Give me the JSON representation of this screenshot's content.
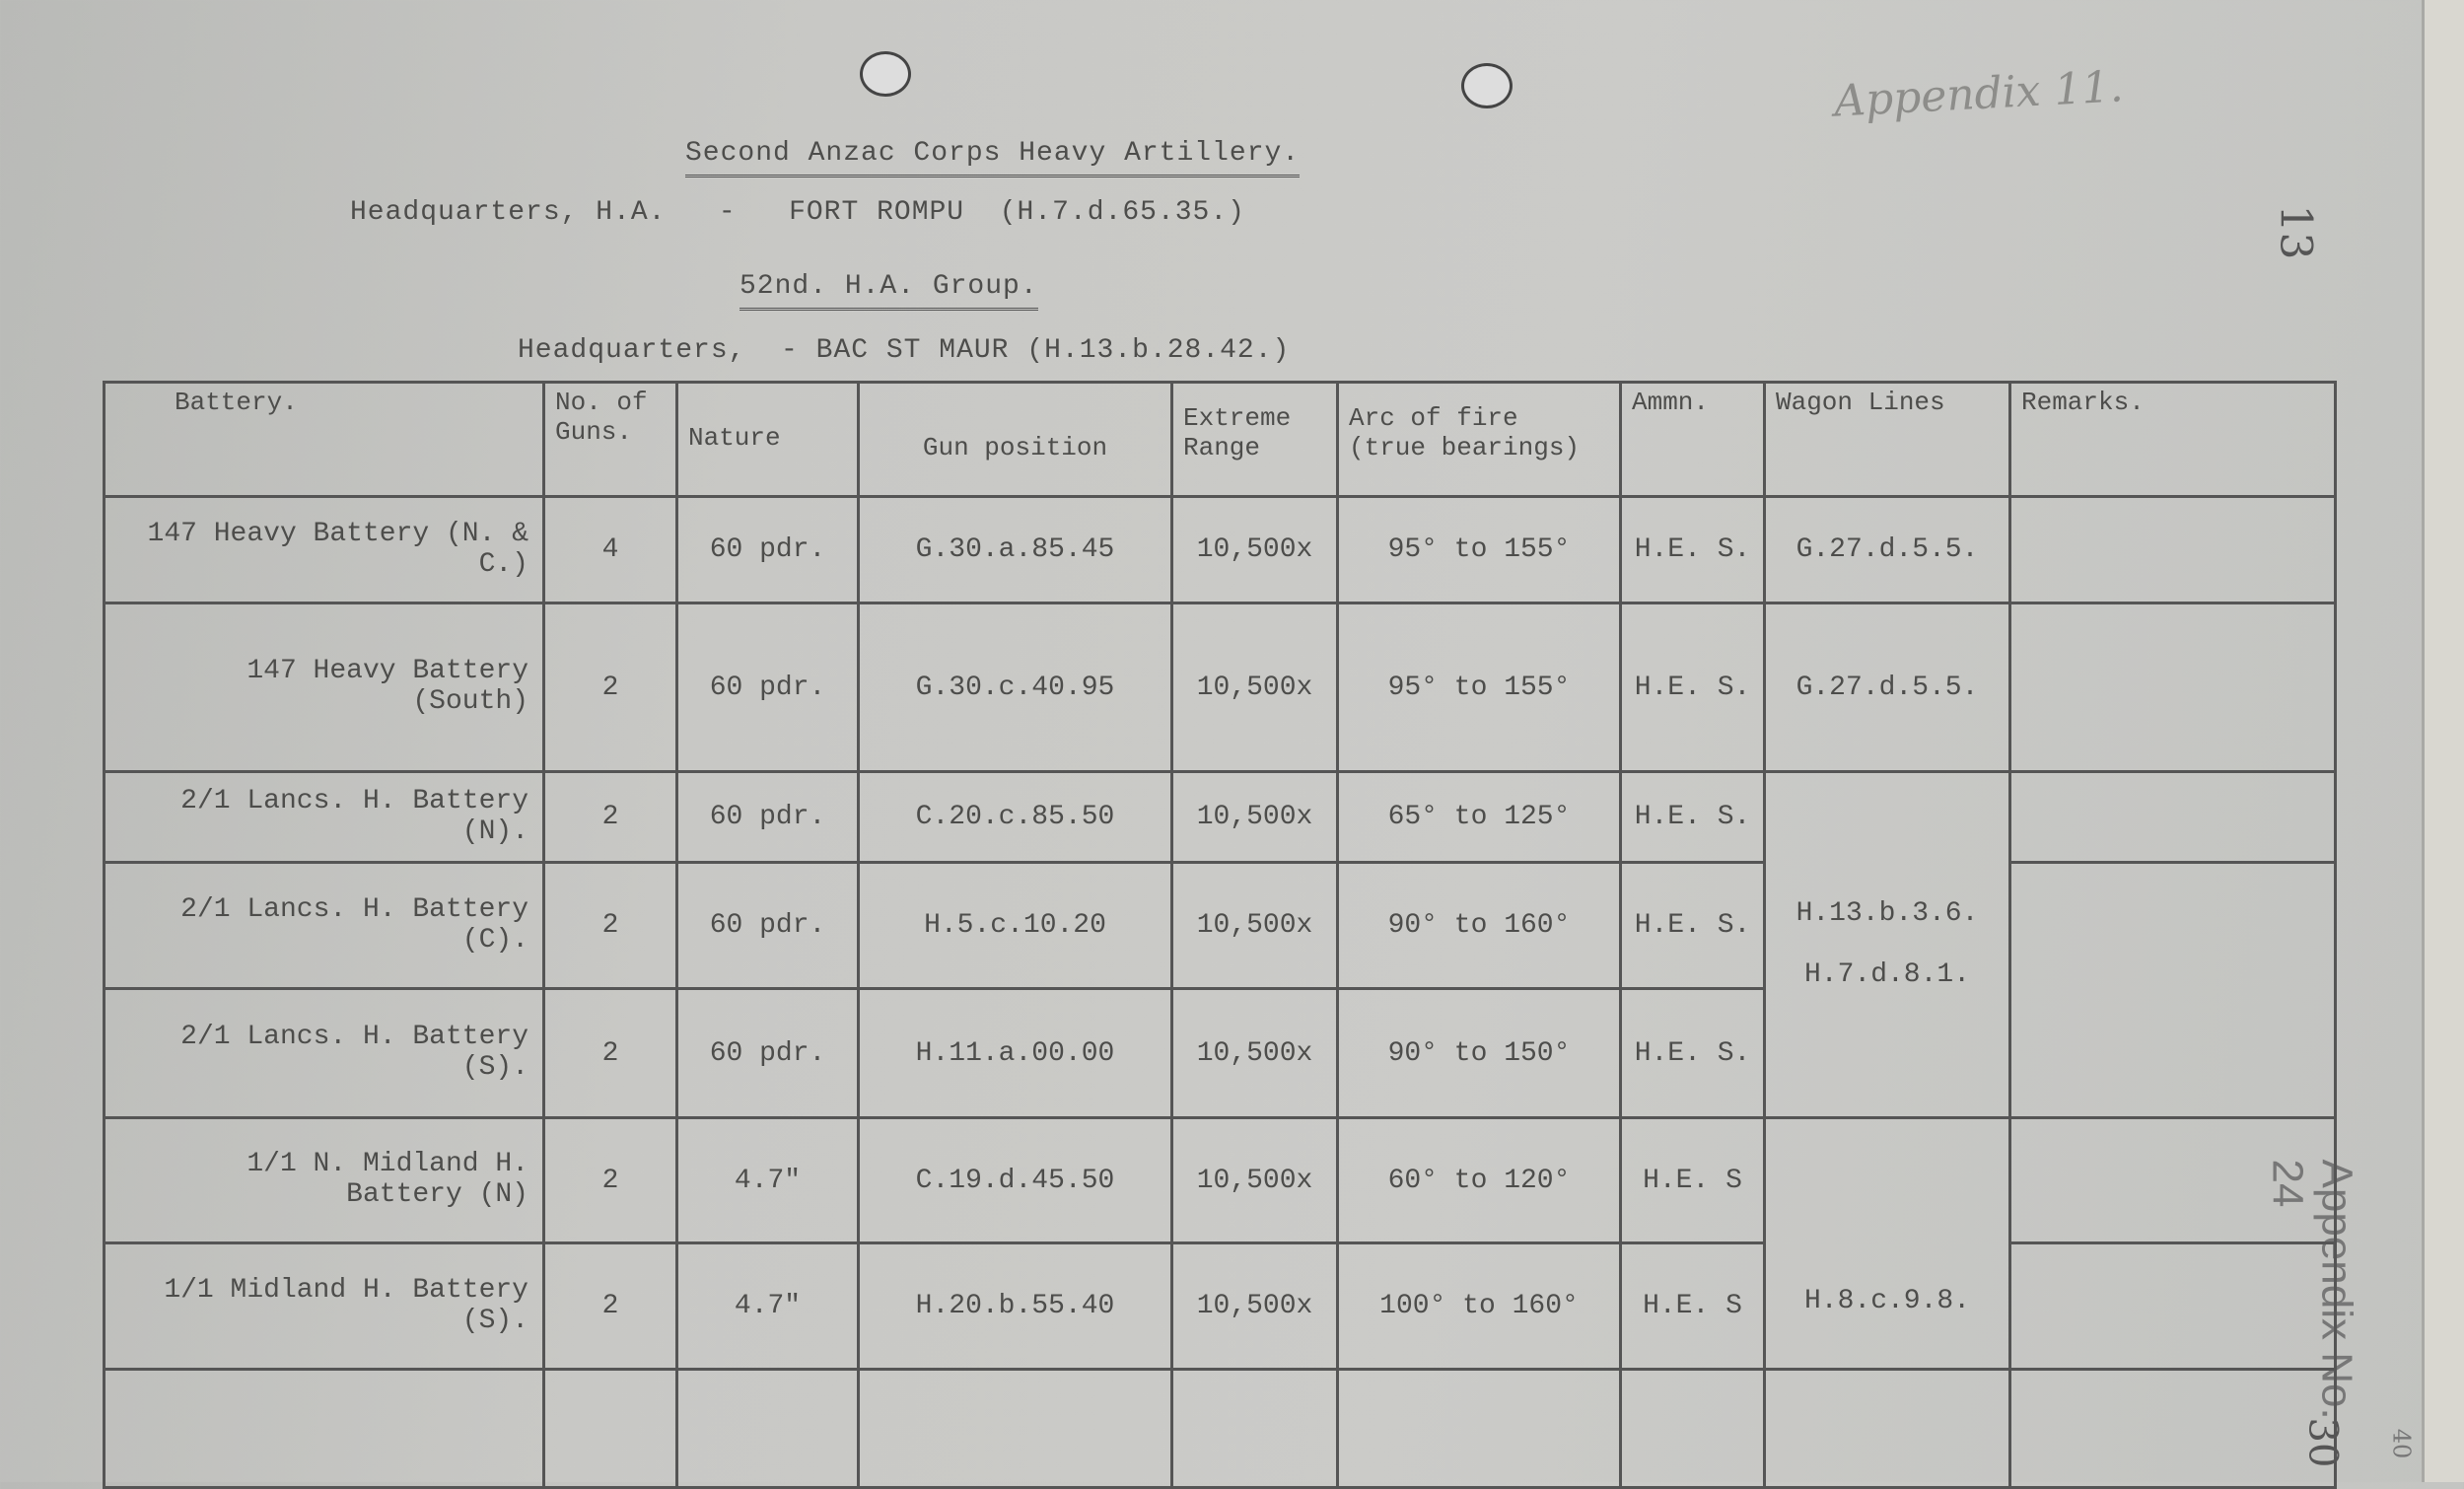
{
  "header": {
    "title": "Second Anzac Corps Heavy Artillery.",
    "hq_line": "Headquarters, H.A.   -   FORT ROMPU  (H.7.d.65.35.)",
    "group": "52nd. H.A. Group.",
    "group_hq_line": "Headquarters,  - BAC ST MAUR (H.13.b.28.42.)"
  },
  "annotations": {
    "appendix_top": "Appendix 11.",
    "page_number": "13",
    "appendix_side": "Appendix No. 24",
    "side_number": "30",
    "corner_number": "40"
  },
  "table": {
    "columns": [
      "Battery.",
      "No. of Guns.",
      "Nature",
      "Gun position",
      "Extreme Range",
      "Arc of fire (true bearings)",
      "Ammn.",
      "Wagon Lines",
      "Remarks."
    ],
    "rows": [
      {
        "battery": "147  Heavy Battery (N. & C.)",
        "guns": "4",
        "nature": "60 pdr.",
        "position": "G.30.a.85.45",
        "range": "10,500x",
        "arc": "95° to 155°",
        "ammn": "H.E. S.",
        "wagon": "G.27.d.5.5.",
        "remarks": ""
      },
      {
        "battery": "147 Heavy Battery (South)",
        "guns": "2",
        "nature": "60 pdr.",
        "position": "G.30.c.40.95",
        "range": "10,500x",
        "arc": "95° to 155°",
        "ammn": "H.E. S.",
        "wagon": "G.27.d.5.5.",
        "remarks": ""
      },
      {
        "battery": "2/1 Lancs. H. Battery (N).",
        "guns": "2",
        "nature": "60 pdr.",
        "position": "C.20.c.85.50",
        "range": "10,500x",
        "arc": "65° to 125°",
        "ammn": "H.E. S.",
        "wagon": "",
        "remarks": ""
      },
      {
        "battery": "2/1 Lancs. H. Battery (C).",
        "guns": "2",
        "nature": "60 pdr.",
        "position": "H.5.c.10.20",
        "range": "10,500x",
        "arc": "90° to 160°",
        "ammn": "H.E. S.",
        "wagon": "",
        "remarks": ""
      },
      {
        "battery": "2/1 Lancs. H. Battery (S).",
        "guns": "2",
        "nature": "60 pdr.",
        "position": "H.11.a.00.00",
        "range": "10,500x",
        "arc": "90° to 150°",
        "ammn": "H.E. S.",
        "wagon": "",
        "remarks": ""
      },
      {
        "battery": "1/1 N. Midland H. Battery (N)",
        "guns": "2",
        "nature": "4.7\"",
        "position": "C.19.d.45.50",
        "range": "10,500x",
        "arc": "60° to 120°",
        "ammn": "H.E. S",
        "wagon": "",
        "remarks": ""
      },
      {
        "battery": "1/1 Midland H. Battery (S).",
        "guns": "2",
        "nature": "4.7\"",
        "position": "H.20.b.55.40",
        "range": "10,500x",
        "arc": "100° to 160°",
        "ammn": "H.E. S",
        "wagon": "H.8.c.9.8.",
        "remarks": ""
      }
    ],
    "lancs_wagon_lines": [
      "H.13.b.3.6.",
      "H.7.d.8.1."
    ]
  }
}
